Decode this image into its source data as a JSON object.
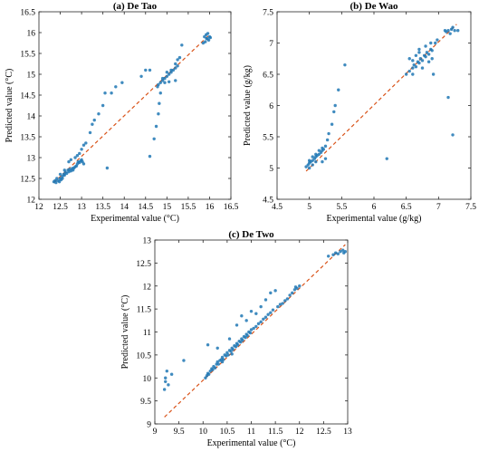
{
  "colors": {
    "points": "#1f77b4",
    "fit_line": "#d95319",
    "axes": "#262626"
  },
  "chart_data": [
    {
      "type": "scatter",
      "title": "(a) De Tao",
      "xlabel": "Experimental  value (°C)",
      "ylabel": "Predicted value (°C)",
      "xlim": [
        12,
        16.5
      ],
      "ylim": [
        12,
        16.5
      ],
      "xticks": [
        "12",
        "12.5",
        "13",
        "13.5",
        "14",
        "14.5",
        "15",
        "15.5",
        "16",
        "16.5"
      ],
      "yticks": [
        "12",
        "12.5",
        "13",
        "13.5",
        "14",
        "14.5",
        "15",
        "15.5",
        "16",
        "16.5"
      ],
      "fit_line": [
        [
          12.35,
          12.4
        ],
        [
          16.0,
          15.95
        ]
      ],
      "grid": false,
      "points": [
        [
          12.35,
          12.42
        ],
        [
          12.38,
          12.45
        ],
        [
          12.4,
          12.4
        ],
        [
          12.42,
          12.5
        ],
        [
          12.45,
          12.45
        ],
        [
          12.48,
          12.42
        ],
        [
          12.5,
          12.5
        ],
        [
          12.52,
          12.47
        ],
        [
          12.55,
          12.55
        ],
        [
          12.58,
          12.6
        ],
        [
          12.6,
          12.58
        ],
        [
          12.62,
          12.65
        ],
        [
          12.65,
          12.62
        ],
        [
          12.68,
          12.7
        ],
        [
          12.7,
          12.66
        ],
        [
          12.72,
          12.72
        ],
        [
          12.75,
          12.68
        ],
        [
          12.78,
          12.74
        ],
        [
          12.8,
          12.7
        ],
        [
          12.82,
          12.75
        ],
        [
          12.85,
          12.78
        ],
        [
          12.88,
          12.8
        ],
        [
          12.9,
          12.85
        ],
        [
          12.92,
          12.9
        ],
        [
          12.95,
          12.88
        ],
        [
          12.98,
          12.92
        ],
        [
          13.0,
          12.95
        ],
        [
          13.02,
          12.9
        ],
        [
          13.05,
          12.85
        ],
        [
          12.5,
          12.6
        ],
        [
          12.55,
          12.5
        ],
        [
          12.6,
          12.7
        ],
        [
          12.7,
          12.9
        ],
        [
          12.75,
          12.95
        ],
        [
          12.85,
          13.0
        ],
        [
          12.9,
          13.05
        ],
        [
          12.95,
          13.1
        ],
        [
          13.0,
          13.2
        ],
        [
          13.05,
          13.3
        ],
        [
          13.1,
          13.35
        ],
        [
          13.2,
          13.6
        ],
        [
          13.25,
          13.8
        ],
        [
          13.3,
          13.9
        ],
        [
          13.4,
          14.05
        ],
        [
          13.5,
          14.25
        ],
        [
          13.55,
          14.55
        ],
        [
          13.6,
          12.75
        ],
        [
          13.7,
          14.55
        ],
        [
          13.8,
          14.7
        ],
        [
          13.95,
          14.8
        ],
        [
          14.4,
          14.95
        ],
        [
          14.6,
          13.03
        ],
        [
          14.7,
          13.45
        ],
        [
          14.75,
          13.75
        ],
        [
          14.8,
          14.05
        ],
        [
          14.82,
          14.3
        ],
        [
          14.85,
          14.55
        ],
        [
          14.6,
          15.1
        ],
        [
          14.5,
          15.1
        ],
        [
          14.78,
          14.7
        ],
        [
          14.8,
          14.75
        ],
        [
          14.85,
          14.8
        ],
        [
          14.9,
          14.85
        ],
        [
          14.95,
          14.9
        ],
        [
          15.0,
          14.95
        ],
        [
          15.05,
          15.0
        ],
        [
          15.1,
          15.05
        ],
        [
          15.15,
          15.1
        ],
        [
          15.2,
          15.15
        ],
        [
          15.25,
          15.2
        ],
        [
          14.9,
          14.9
        ],
        [
          15.0,
          15.05
        ],
        [
          15.1,
          15.1
        ],
        [
          15.2,
          15.25
        ],
        [
          15.25,
          15.35
        ],
        [
          15.3,
          15.4
        ],
        [
          15.35,
          15.7
        ],
        [
          15.2,
          14.85
        ],
        [
          15.05,
          14.82
        ],
        [
          14.95,
          14.8
        ],
        [
          15.9,
          15.78
        ],
        [
          15.95,
          15.85
        ],
        [
          16.0,
          15.9
        ],
        [
          15.92,
          15.95
        ],
        [
          15.98,
          15.82
        ],
        [
          16.02,
          15.88
        ],
        [
          15.85,
          15.75
        ],
        [
          15.88,
          15.9
        ],
        [
          15.96,
          15.98
        ],
        [
          15.93,
          15.86
        ]
      ]
    },
    {
      "type": "scatter",
      "title": "(b) De Wao",
      "xlabel": "Experimental  value (g/kg)",
      "ylabel": "Predicted value (g/kg)",
      "xlim": [
        4.5,
        7.5
      ],
      "ylim": [
        4.5,
        7.5
      ],
      "xticks": [
        "4.5",
        "5",
        "5.5",
        "6",
        "6.5",
        "7",
        "7.5"
      ],
      "yticks": [
        "4.5",
        "5",
        "5.5",
        "6",
        "6.5",
        "7",
        "7.5"
      ],
      "fit_line": [
        [
          4.95,
          4.95
        ],
        [
          7.28,
          7.3
        ]
      ],
      "grid": false,
      "points": [
        [
          4.95,
          5.02
        ],
        [
          4.98,
          5.05
        ],
        [
          5.0,
          5.08
        ],
        [
          5.02,
          5.1
        ],
        [
          5.05,
          5.12
        ],
        [
          5.08,
          5.15
        ],
        [
          5.1,
          5.18
        ],
        [
          5.12,
          5.2
        ],
        [
          5.15,
          5.22
        ],
        [
          5.18,
          5.25
        ],
        [
          5.2,
          5.28
        ],
        [
          5.22,
          5.3
        ],
        [
          5.0,
          5.12
        ],
        [
          5.05,
          5.18
        ],
        [
          5.1,
          5.22
        ],
        [
          5.15,
          5.28
        ],
        [
          5.2,
          5.32
        ],
        [
          5.25,
          5.35
        ],
        [
          5.28,
          5.45
        ],
        [
          5.3,
          5.55
        ],
        [
          5.35,
          5.7
        ],
        [
          5.38,
          5.9
        ],
        [
          5.4,
          6.0
        ],
        [
          5.45,
          6.25
        ],
        [
          5.55,
          6.65
        ],
        [
          5.0,
          5.0
        ],
        [
          5.05,
          5.05
        ],
        [
          5.1,
          5.1
        ],
        [
          5.2,
          5.1
        ],
        [
          5.25,
          5.15
        ],
        [
          6.2,
          5.15
        ],
        [
          6.5,
          6.5
        ],
        [
          6.55,
          6.55
        ],
        [
          6.6,
          6.6
        ],
        [
          6.62,
          6.65
        ],
        [
          6.65,
          6.62
        ],
        [
          6.68,
          6.7
        ],
        [
          6.7,
          6.68
        ],
        [
          6.72,
          6.75
        ],
        [
          6.75,
          6.72
        ],
        [
          6.78,
          6.8
        ],
        [
          6.8,
          6.78
        ],
        [
          6.82,
          6.85
        ],
        [
          6.85,
          6.82
        ],
        [
          6.88,
          6.9
        ],
        [
          6.9,
          6.88
        ],
        [
          6.6,
          6.72
        ],
        [
          6.65,
          6.8
        ],
        [
          6.55,
          6.75
        ],
        [
          6.7,
          6.9
        ],
        [
          6.8,
          6.95
        ],
        [
          6.75,
          6.6
        ],
        [
          6.85,
          6.7
        ],
        [
          6.9,
          6.75
        ],
        [
          6.92,
          6.5
        ],
        [
          6.95,
          7.0
        ],
        [
          6.98,
          7.05
        ],
        [
          6.6,
          6.5
        ],
        [
          7.1,
          7.2
        ],
        [
          7.15,
          7.2
        ],
        [
          7.2,
          7.22
        ],
        [
          7.25,
          7.2
        ],
        [
          7.3,
          7.2
        ],
        [
          7.18,
          7.15
        ],
        [
          7.22,
          7.25
        ],
        [
          7.12,
          7.18
        ],
        [
          7.15,
          6.13
        ],
        [
          7.22,
          5.53
        ],
        [
          6.88,
          7.0
        ],
        [
          6.7,
          6.85
        ]
      ]
    },
    {
      "type": "scatter",
      "title": "(c) De Two",
      "xlabel": "Experimental  value (°C)",
      "ylabel": "Predicted value (°C)",
      "xlim": [
        9,
        13
      ],
      "ylim": [
        9,
        13
      ],
      "xticks": [
        "9",
        "9.5",
        "10",
        "10.5",
        "11",
        "11.5",
        "12",
        "12.5",
        "13"
      ],
      "yticks": [
        "9",
        "9.5",
        "10",
        "10.5",
        "11",
        "11.5",
        "12",
        "12.5",
        "13"
      ],
      "fit_line": [
        [
          9.2,
          9.15
        ],
        [
          12.95,
          12.9
        ]
      ],
      "grid": false,
      "points": [
        [
          9.2,
          9.75
        ],
        [
          9.22,
          10.0
        ],
        [
          9.25,
          10.15
        ],
        [
          9.28,
          9.85
        ],
        [
          9.35,
          10.08
        ],
        [
          9.22,
          9.92
        ],
        [
          9.6,
          10.38
        ],
        [
          10.05,
          10.0
        ],
        [
          10.08,
          10.05
        ],
        [
          10.1,
          10.1
        ],
        [
          10.12,
          10.08
        ],
        [
          10.15,
          10.15
        ],
        [
          10.18,
          10.2
        ],
        [
          10.2,
          10.18
        ],
        [
          10.22,
          10.25
        ],
        [
          10.25,
          10.22
        ],
        [
          10.28,
          10.3
        ],
        [
          10.3,
          10.35
        ],
        [
          10.32,
          10.3
        ],
        [
          10.35,
          10.38
        ],
        [
          10.38,
          10.4
        ],
        [
          10.4,
          10.45
        ],
        [
          10.42,
          10.4
        ],
        [
          10.45,
          10.5
        ],
        [
          10.48,
          10.48
        ],
        [
          10.5,
          10.55
        ],
        [
          10.52,
          10.5
        ],
        [
          10.55,
          10.6
        ],
        [
          10.58,
          10.58
        ],
        [
          10.6,
          10.65
        ],
        [
          10.62,
          10.62
        ],
        [
          10.65,
          10.7
        ],
        [
          10.68,
          10.68
        ],
        [
          10.7,
          10.75
        ],
        [
          10.72,
          10.72
        ],
        [
          10.75,
          10.8
        ],
        [
          10.78,
          10.78
        ],
        [
          10.8,
          10.85
        ],
        [
          10.82,
          10.82
        ],
        [
          10.85,
          10.9
        ],
        [
          10.88,
          10.88
        ],
        [
          10.9,
          10.95
        ],
        [
          10.92,
          10.92
        ],
        [
          10.95,
          11.0
        ],
        [
          10.98,
          10.98
        ],
        [
          11.0,
          11.05
        ],
        [
          11.05,
          11.08
        ],
        [
          11.1,
          11.12
        ],
        [
          11.15,
          11.18
        ],
        [
          11.2,
          11.22
        ],
        [
          11.25,
          11.28
        ],
        [
          11.3,
          11.32
        ],
        [
          11.35,
          11.38
        ],
        [
          11.4,
          11.42
        ],
        [
          11.45,
          11.48
        ],
        [
          10.1,
          10.72
        ],
        [
          10.3,
          10.65
        ],
        [
          10.55,
          10.85
        ],
        [
          10.7,
          11.15
        ],
        [
          10.8,
          11.35
        ],
        [
          10.9,
          11.25
        ],
        [
          11.0,
          11.45
        ],
        [
          11.1,
          11.4
        ],
        [
          11.2,
          11.55
        ],
        [
          11.3,
          11.7
        ],
        [
          11.4,
          11.85
        ],
        [
          11.5,
          11.9
        ],
        [
          11.55,
          11.55
        ],
        [
          11.6,
          11.6
        ],
        [
          11.65,
          11.62
        ],
        [
          11.7,
          11.68
        ],
        [
          11.75,
          11.72
        ],
        [
          11.8,
          11.8
        ],
        [
          11.85,
          11.85
        ],
        [
          11.9,
          11.92
        ],
        [
          11.92,
          11.98
        ],
        [
          11.95,
          11.95
        ],
        [
          12.0,
          12.0
        ],
        [
          10.4,
          10.35
        ],
        [
          10.6,
          10.52
        ],
        [
          12.75,
          12.72
        ],
        [
          12.8,
          12.7
        ],
        [
          12.85,
          12.75
        ],
        [
          12.9,
          12.78
        ],
        [
          12.92,
          12.72
        ],
        [
          12.95,
          12.75
        ],
        [
          12.7,
          12.68
        ],
        [
          12.6,
          12.65
        ]
      ]
    }
  ]
}
